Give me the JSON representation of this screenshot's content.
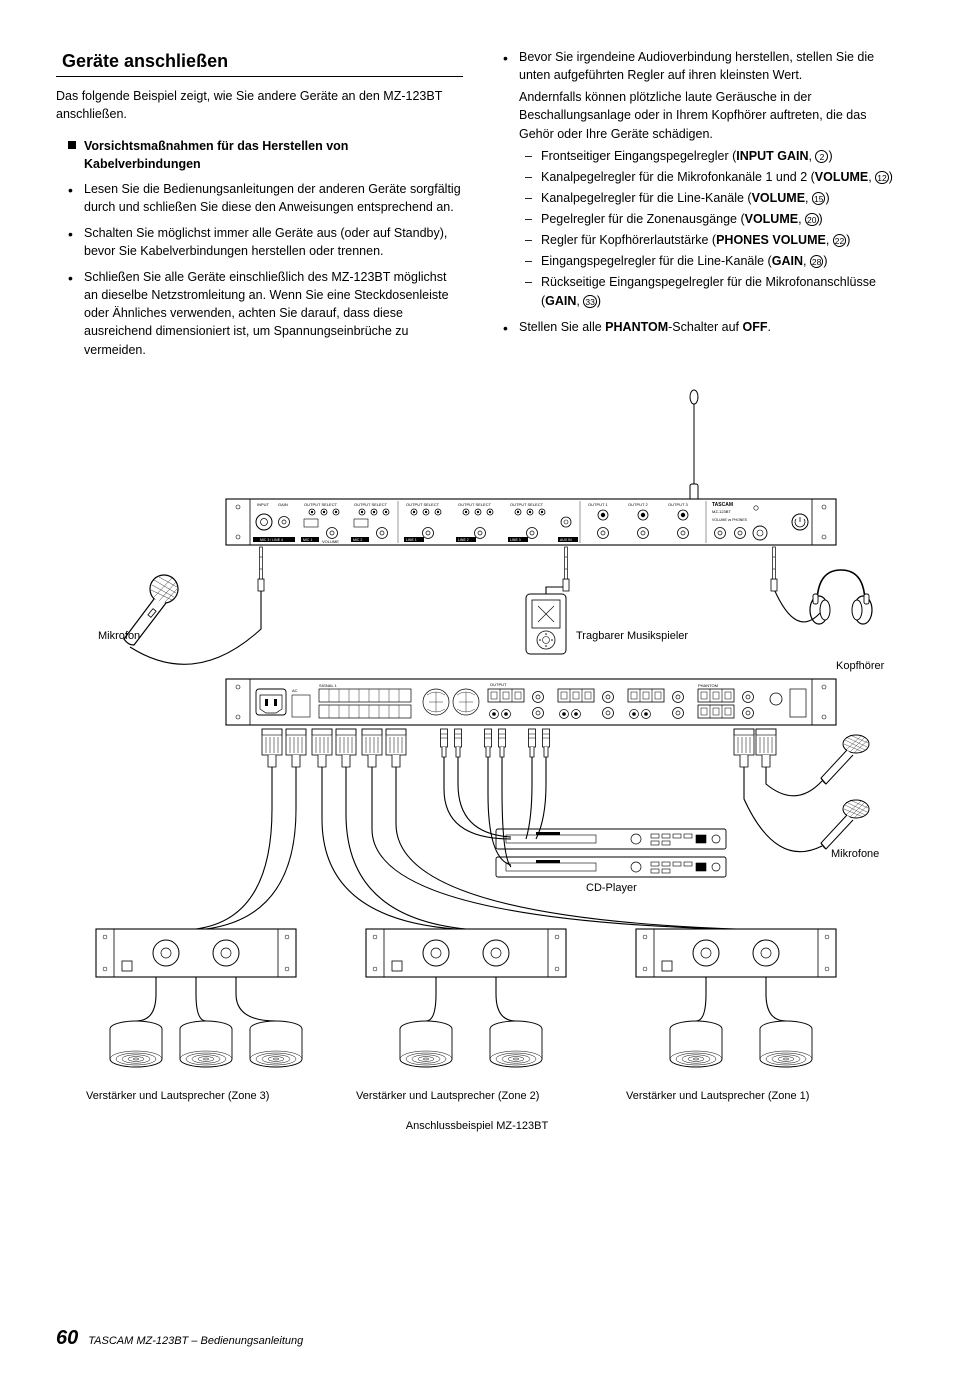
{
  "page": {
    "number": "60",
    "footer": "TASCAM MZ-123BT – Bedienungsanleitung"
  },
  "section": {
    "title": "Geräte anschließen",
    "intro": "Das folgende Beispiel zeigt, wie Sie andere Geräte an den MZ-123BT anschließen.",
    "subheading": "Vorsichtsmaßnahmen für das Herstellen von Kabelverbindungen",
    "left_bullets": [
      "Lesen Sie die Bedienungsanleitungen der anderen Geräte sorgfältig durch und schließen Sie diese den Anweisungen entsprechend an.",
      "Schalten Sie möglichst immer alle Geräte aus (oder auf Standby), bevor Sie Kabelverbindungen herstellen oder trennen.",
      "Schließen Sie alle Geräte einschließlich des MZ-123BT möglichst an dieselbe Netzstromleitung an. Wenn Sie eine Steckdosenleiste oder Ähnliches verwenden, achten Sie darauf, dass diese ausreichend dimensioniert ist, um Spannungseinbrüche zu vermeiden."
    ],
    "right_bullet_intro1": "Bevor Sie irgendeine Audioverbindung herstellen, stellen Sie die unten aufgeführten Regler auf ihren kleinsten Wert.",
    "right_bullet_intro2": "Andernfalls können plötzliche laute Geräusche in der Beschallungsanlage oder in Ihrem Kopfhörer auftreten, die das Gehör oder Ihre Geräte schädigen.",
    "reglers": [
      {
        "text_pre": "Frontseitiger Eingangspegelregler (",
        "bold": "INPUT GAIN",
        "text_post": ", ",
        "num": "2",
        "tail": ")"
      },
      {
        "text_pre": "Kanalpegelregler für die Mikrofonkanäle 1 und 2 (",
        "bold": "VOLUME",
        "text_post": ", ",
        "num": "12",
        "tail": ")"
      },
      {
        "text_pre": "Kanalpegelregler für die Line-Kanäle (",
        "bold": "VOLUME",
        "text_post": ", ",
        "num": "15",
        "tail": ")"
      },
      {
        "text_pre": "Pegelregler für die Zonenausgänge (",
        "bold": "VOLUME",
        "text_post": ", ",
        "num": "20",
        "tail": ")"
      },
      {
        "text_pre": "Regler für Kopfhörerlautstärke (",
        "bold": "PHONES VOLUME",
        "text_post": ", ",
        "num": "22",
        "tail": ")"
      },
      {
        "text_pre": "Eingangspegelregler für die Line-Kanäle (",
        "bold": "GAIN",
        "text_post": ", ",
        "num": "28",
        "tail": ")"
      },
      {
        "text_pre": "Rückseitige Eingangspegelregler für die Mikrofon­anschlüsse (",
        "bold": "GAIN",
        "text_post": ", ",
        "num": "33",
        "tail": ")"
      }
    ],
    "right_bullet_last_pre": "Stellen Sie alle ",
    "right_bullet_last_bold1": "PHANTOM",
    "right_bullet_last_mid": "-Schalter auf ",
    "right_bullet_last_bold2": "OFF",
    "right_bullet_last_post": "."
  },
  "diagram": {
    "labels": {
      "mikrofon": "Mikrofon",
      "player": "Tragbarer Musikspieler",
      "kopfhoerer": "Kopfhörer",
      "mikrofone": "Mikrofone",
      "cd": "CD-Player",
      "tascam": "TASCAM",
      "model": "MZ-123BT",
      "zone3": "Verstärker und Lautsprecher (Zone 3)",
      "zone2": "Verstärker und Lautsprecher (Zone 2)",
      "zone1": "Verstärker und Lautsprecher (Zone 1)",
      "caption": "Anschlussbeispiel MZ-123BT"
    },
    "style": {
      "stroke": "#000000",
      "fill_bg": "#ffffff",
      "stroke_width_thin": 0.8,
      "stroke_width_med": 1.1,
      "stroke_width_thick": 1.6,
      "label_fontsize": 11,
      "total_width": 842,
      "total_height": 760
    }
  }
}
